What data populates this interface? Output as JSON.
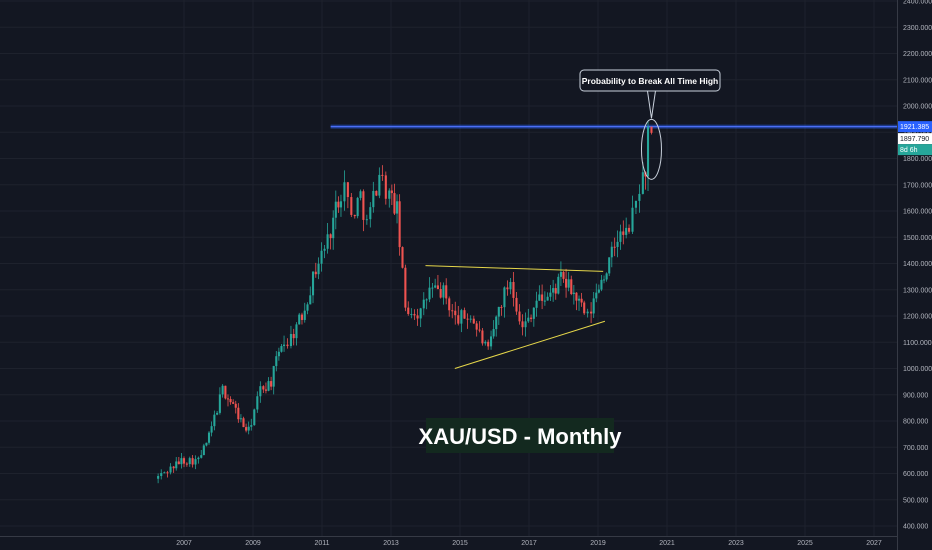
{
  "chart_data": {
    "type": "candlestick",
    "title": "XAU/USD -  Monthly",
    "annotation": "Probability to  Break All Time High",
    "x_ticks": [
      "2007",
      "2009",
      "2011",
      "2013",
      "2015",
      "2017",
      "2019",
      "2021",
      "2023",
      "2025",
      "2027"
    ],
    "x_tick_years": [
      2007,
      2009,
      2011,
      2013,
      2015,
      2017,
      2019,
      2021,
      2023,
      2025,
      2027
    ],
    "y_ticks": [
      "400.000",
      "500.000",
      "600.000",
      "700.000",
      "800.000",
      "900.000",
      "1000.000",
      "1100.000",
      "1200.000",
      "1300.000",
      "1400.000",
      "1500.000",
      "1600.000",
      "1700.000",
      "1800.000",
      "1900.000",
      "2000.000",
      "2100.000",
      "2200.000",
      "2300.000",
      "2400.000"
    ],
    "y_tick_values": [
      400,
      500,
      600,
      700,
      800,
      900,
      1000,
      1100,
      1200,
      1300,
      1400,
      1500,
      1600,
      1700,
      1800,
      1900,
      2000,
      2100,
      2200,
      2300,
      2400
    ],
    "xlim": [
      2005.25,
      2028.0
    ],
    "ylim": [
      400,
      2400
    ],
    "price_labels": {
      "resistance": "1921.385",
      "last": "1897.790",
      "countdown": "8d 6h"
    },
    "resistance_level": 1921.385,
    "last_price": 1897.79,
    "trendlines": [
      {
        "name": "upper",
        "from": [
          2014.0,
          1392
        ],
        "to": [
          2019.15,
          1370
        ]
      },
      {
        "name": "lower",
        "from": [
          2014.85,
          1000
        ],
        "to": [
          2019.2,
          1180
        ]
      }
    ],
    "anchors": [
      [
        2006.25,
        580,
        650
      ],
      [
        2006.7,
        620,
        640
      ],
      [
        2007.0,
        650,
        660
      ],
      [
        2007.5,
        650,
        680
      ],
      [
        2007.8,
        740,
        790
      ],
      [
        2008.2,
        920,
        980
      ],
      [
        2008.5,
        860,
        880
      ],
      [
        2008.8,
        780,
        730
      ],
      [
        2008.95,
        760,
        820
      ],
      [
        2009.3,
        920,
        980
      ],
      [
        2009.6,
        950,
        1000
      ],
      [
        2009.9,
        1100,
        1160
      ],
      [
        2010.1,
        1100,
        1120
      ],
      [
        2010.5,
        1200,
        1230
      ],
      [
        2010.9,
        1380,
        1400
      ],
      [
        2011.25,
        1490,
        1540
      ],
      [
        2011.55,
        1650,
        1840
      ],
      [
        2011.75,
        1700,
        1740
      ],
      [
        2011.95,
        1580,
        1640
      ],
      [
        2012.2,
        1660,
        1700
      ],
      [
        2012.4,
        1550,
        1600
      ],
      [
        2012.75,
        1750,
        1780
      ],
      [
        2012.95,
        1680,
        1700
      ],
      [
        2013.25,
        1600,
        1480
      ],
      [
        2013.5,
        1230,
        1320
      ],
      [
        2013.95,
        1210,
        1240
      ],
      [
        2014.2,
        1300,
        1330
      ],
      [
        2014.6,
        1290,
        1310
      ],
      [
        2014.95,
        1190,
        1210
      ],
      [
        2015.4,
        1200,
        1180
      ],
      [
        2015.9,
        1060,
        1080
      ],
      [
        2016.2,
        1230,
        1280
      ],
      [
        2016.55,
        1340,
        1320
      ],
      [
        2016.9,
        1150,
        1180
      ],
      [
        2017.3,
        1260,
        1270
      ],
      [
        2017.7,
        1280,
        1300
      ],
      [
        2018.0,
        1340,
        1330
      ],
      [
        2018.3,
        1300,
        1290
      ],
      [
        2018.6,
        1230,
        1200
      ],
      [
        2018.8,
        1190,
        1220
      ],
      [
        2019.1,
        1320,
        1300
      ],
      [
        2019.4,
        1400,
        1420
      ],
      [
        2019.65,
        1500,
        1470
      ],
      [
        2019.9,
        1510,
        1520
      ],
      [
        2020.1,
        1580,
        1590
      ],
      [
        2020.3,
        1690,
        1720
      ],
      [
        2020.45,
        1760,
        1780
      ],
      [
        2020.55,
        1897.79,
        1897.79
      ]
    ]
  }
}
